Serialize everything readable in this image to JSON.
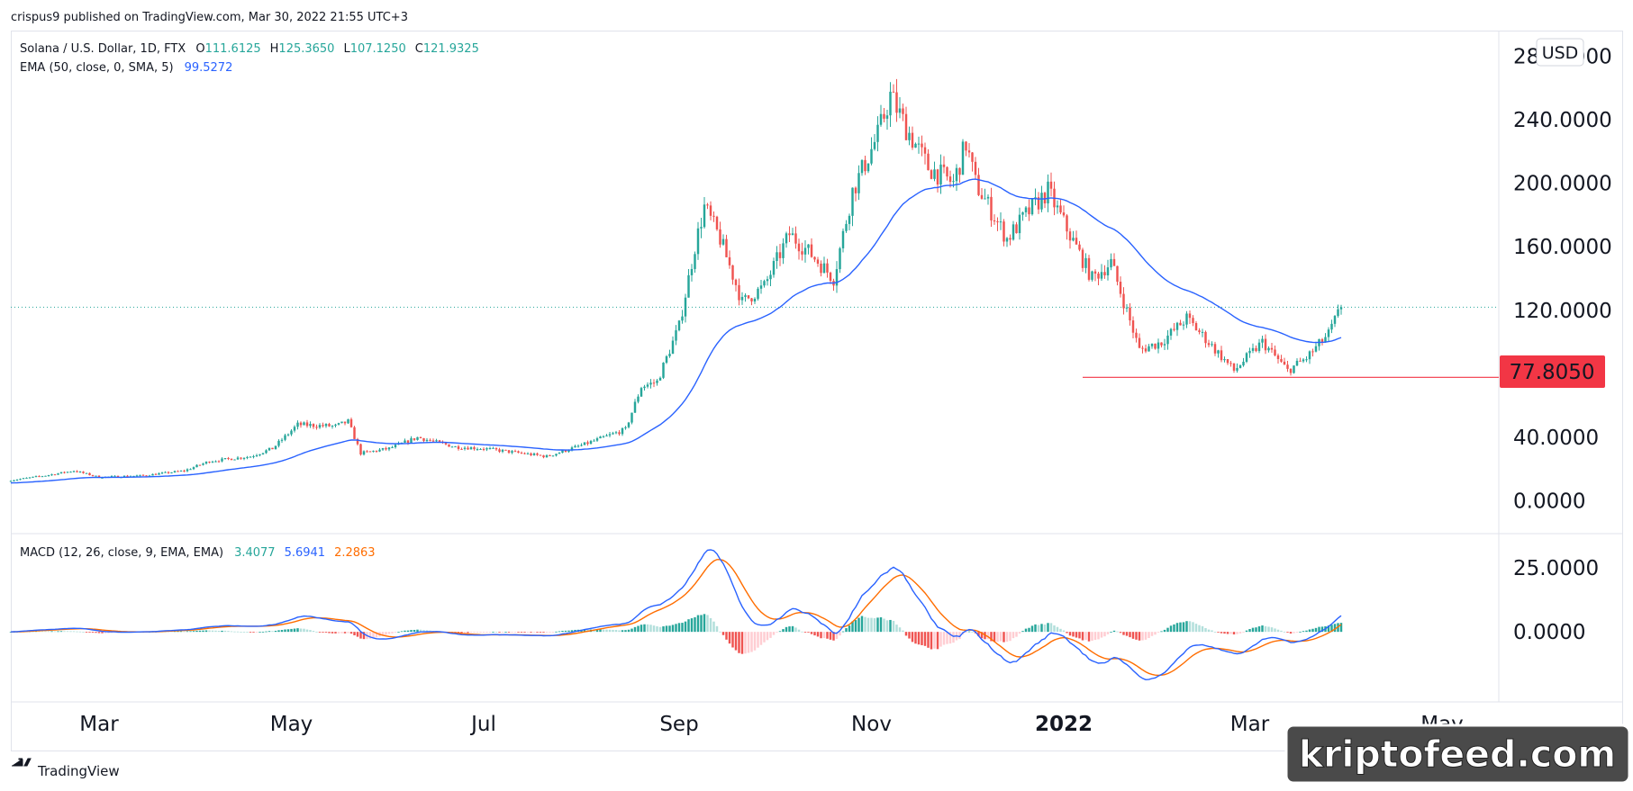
{
  "header": {
    "published": "crispus9 published on TradingView.com, Mar 30, 2022 21:55 UTC+3",
    "symbol": "Solana / U.S. Dollar, 1D, FTX",
    "ohlc": {
      "o_label": "O",
      "o": "111.6125",
      "h_label": "H",
      "h": "125.3650",
      "l_label": "L",
      "l": "107.1250",
      "c_label": "C",
      "c": "121.9325"
    },
    "ema_label": "EMA (50, close, 0, SMA, 5)",
    "ema_value": "99.5272",
    "macd_label": "MACD (12, 26, close, 9, EMA, EMA)",
    "macd_values": [
      "3.4077",
      "5.6941",
      "2.2863"
    ]
  },
  "currency_button": "USD",
  "price_badge": "77.8050",
  "footer": {
    "brand": "TradingView"
  },
  "watermark": "kriptofeed.com",
  "colors": {
    "up": "#26a69a",
    "down": "#ef5350",
    "ema": "#2962ff",
    "macd_line": "#2962ff",
    "signal_line": "#ff6d00",
    "hist_up_strong": "#26a69a",
    "hist_up_weak": "#b2dfdb",
    "hist_down_strong": "#ef5350",
    "hist_down_weak": "#ffcdd2",
    "support_line": "#f23645",
    "last_price_line": "#26a69a"
  },
  "chart_data": [
    {
      "type": "candlestick",
      "title": "Solana / U.S. Dollar, 1D, FTX",
      "x_labels": [
        "Mar",
        "May",
        "Jul",
        "Sep",
        "Nov",
        "2022",
        "Mar",
        "May"
      ],
      "x_label_dates": [
        "2021-03-01",
        "2021-05-01",
        "2021-07-01",
        "2021-09-01",
        "2021-11-01",
        "2022-01-01",
        "2022-03-01",
        "2022-05-01"
      ],
      "x_range": [
        "2021-02-01",
        "2022-05-19"
      ],
      "y_ticks": [
        "0.0000",
        "40.0000",
        "120.0000",
        "160.0000",
        "200.0000",
        "240.0000",
        "280.0000"
      ],
      "ylim": [
        -20,
        296
      ],
      "last_price": 121.9325,
      "support_level": 77.805,
      "ema_period": 50,
      "key_points": [
        {
          "date": "2021-02-01",
          "price": 13
        },
        {
          "date": "2021-02-12",
          "price": 16
        },
        {
          "date": "2021-02-21",
          "price": 19
        },
        {
          "date": "2021-03-01",
          "price": 15
        },
        {
          "date": "2021-03-15",
          "price": 16
        },
        {
          "date": "2021-03-28",
          "price": 19
        },
        {
          "date": "2021-04-05",
          "price": 25
        },
        {
          "date": "2021-04-18",
          "price": 28
        },
        {
          "date": "2021-04-25",
          "price": 33
        },
        {
          "date": "2021-05-03",
          "price": 48
        },
        {
          "date": "2021-05-15",
          "price": 47
        },
        {
          "date": "2021-05-19",
          "price": 50
        },
        {
          "date": "2021-05-23",
          "price": 30
        },
        {
          "date": "2021-06-01",
          "price": 33
        },
        {
          "date": "2021-06-10",
          "price": 40
        },
        {
          "date": "2021-06-22",
          "price": 34
        },
        {
          "date": "2021-07-01",
          "price": 33
        },
        {
          "date": "2021-07-21",
          "price": 28
        },
        {
          "date": "2021-08-01",
          "price": 35
        },
        {
          "date": "2021-08-15",
          "price": 45
        },
        {
          "date": "2021-08-20",
          "price": 72
        },
        {
          "date": "2021-08-25",
          "price": 75
        },
        {
          "date": "2021-09-01",
          "price": 110
        },
        {
          "date": "2021-09-06",
          "price": 160
        },
        {
          "date": "2021-09-09",
          "price": 185
        },
        {
          "date": "2021-09-14",
          "price": 165
        },
        {
          "date": "2021-09-21",
          "price": 125
        },
        {
          "date": "2021-09-28",
          "price": 135
        },
        {
          "date": "2021-10-06",
          "price": 168
        },
        {
          "date": "2021-10-13",
          "price": 155
        },
        {
          "date": "2021-10-20",
          "price": 140
        },
        {
          "date": "2021-10-26",
          "price": 195
        },
        {
          "date": "2021-11-03",
          "price": 230
        },
        {
          "date": "2021-11-07",
          "price": 255
        },
        {
          "date": "2021-11-12",
          "price": 235
        },
        {
          "date": "2021-11-19",
          "price": 210
        },
        {
          "date": "2021-11-27",
          "price": 200
        },
        {
          "date": "2021-12-01",
          "price": 225
        },
        {
          "date": "2021-12-04",
          "price": 200
        },
        {
          "date": "2021-12-14",
          "price": 165
        },
        {
          "date": "2021-12-20",
          "price": 180
        },
        {
          "date": "2021-12-27",
          "price": 195
        },
        {
          "date": "2022-01-01",
          "price": 175
        },
        {
          "date": "2022-01-10",
          "price": 140
        },
        {
          "date": "2022-01-16",
          "price": 150
        },
        {
          "date": "2022-01-25",
          "price": 95
        },
        {
          "date": "2022-02-01",
          "price": 100
        },
        {
          "date": "2022-02-09",
          "price": 115
        },
        {
          "date": "2022-02-15",
          "price": 102
        },
        {
          "date": "2022-02-24",
          "price": 82
        },
        {
          "date": "2022-03-05",
          "price": 100
        },
        {
          "date": "2022-03-13",
          "price": 82
        },
        {
          "date": "2022-03-19",
          "price": 90
        },
        {
          "date": "2022-03-26",
          "price": 105
        },
        {
          "date": "2022-03-30",
          "price": 121.9
        }
      ]
    },
    {
      "type": "macd",
      "title": "MACD (12, 26, close, 9, EMA, EMA)",
      "y_ticks": [
        "25.0000",
        "0.0000"
      ],
      "ylim": [
        -27,
        38
      ],
      "macd_value": 3.4077,
      "signal_value": 5.6941,
      "histogram_value": 2.2863
    }
  ]
}
